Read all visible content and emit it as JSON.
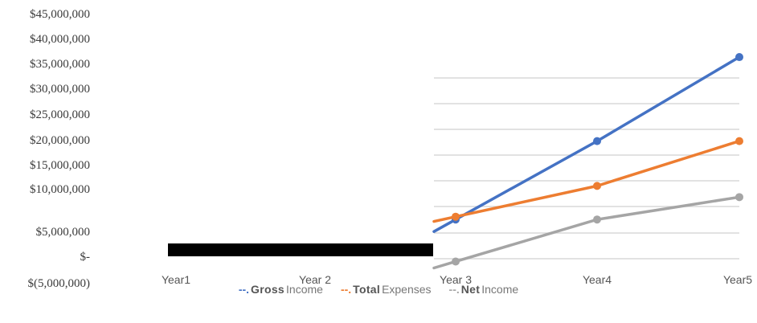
{
  "chart_data": {
    "type": "line",
    "categories": [
      "Year1",
      "Year 2",
      "Year 3",
      "Year4",
      "Year5"
    ],
    "series": [
      {
        "name": "GrossIncome",
        "values": [
          null,
          null,
          7000000,
          21000000,
          36000000
        ],
        "color": "#4472c4"
      },
      {
        "name": "Total Expenses",
        "values": [
          null,
          null,
          7500000,
          13000000,
          21000000
        ],
        "color": "#ed7d31"
      },
      {
        "name": "Net Income",
        "values": [
          null,
          null,
          -500000,
          7000000,
          11000000
        ],
        "color": "#a5a5a5"
      }
    ],
    "yticks": [
      {
        "value": 45000000,
        "label": "$45,000,000"
      },
      {
        "value": 40000000,
        "label": "$40,000,000"
      },
      {
        "value": 35000000,
        "label": "$35,000,000"
      },
      {
        "value": 30000000,
        "label": "$30,000,000"
      },
      {
        "value": 25000000,
        "label": "$25,000,000"
      },
      {
        "value": 20000000,
        "label": "$20,000,000"
      },
      {
        "value": 15000000,
        "label": "$15,000,000"
      },
      {
        "value": 10000000,
        "label": "$10,000,000"
      },
      {
        "value": 5000000,
        "label": "$5,000,000"
      },
      {
        "value": 0,
        "label": "$-"
      },
      {
        "value": -5000000,
        "label": "$(5,000,000)"
      }
    ],
    "ylim": [
      -5000000,
      45000000
    ],
    "grid": true,
    "legend_position": "bottom",
    "legend": [
      {
        "marker": "--.",
        "word1": "Gross",
        "word2": "Income",
        "color": "#4472c4"
      },
      {
        "marker": "--.",
        "word1": "Total",
        "word2": "Expenses",
        "color": "#ed7d31"
      },
      {
        "marker": "--.",
        "word1": "Net",
        "word2": "Income",
        "color": "#a5a5a5"
      }
    ],
    "grid_color": "#d9d9d9"
  }
}
